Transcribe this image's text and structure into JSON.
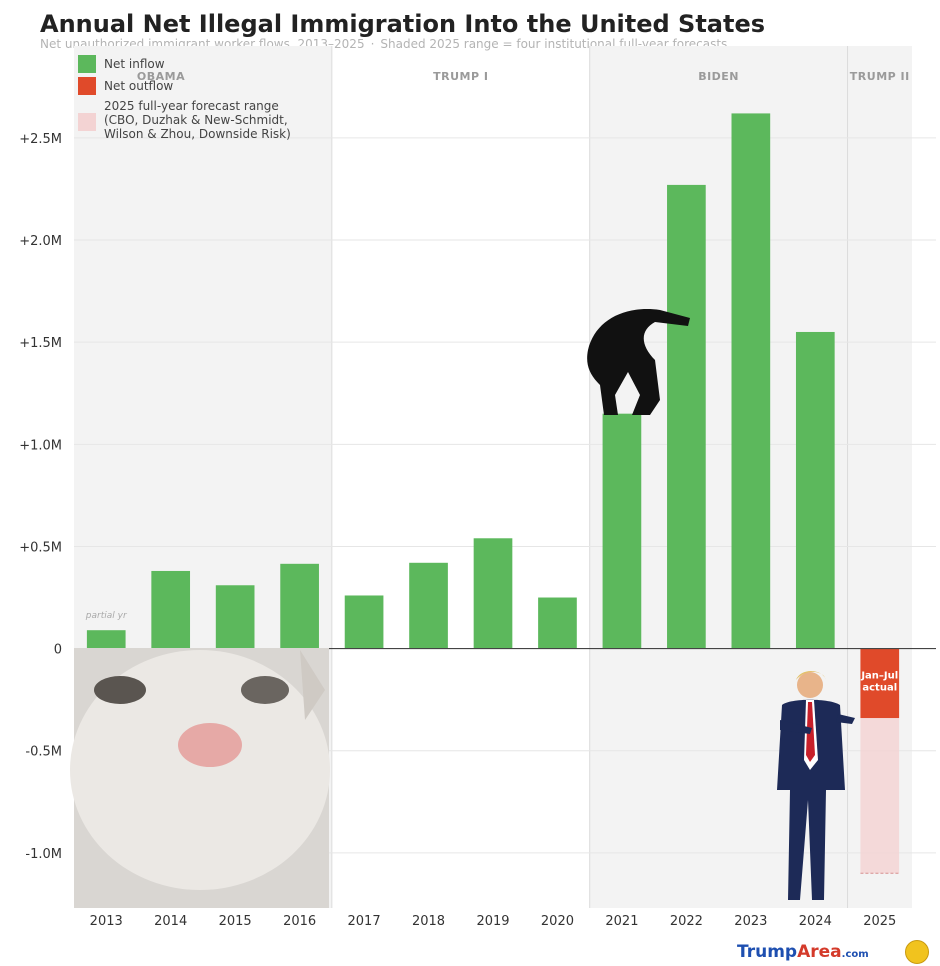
{
  "title": "Annual Net Illegal Immigration Into the United States",
  "subtitle": {
    "left": "Net unauthorized immigrant worker flows, 2013–2025",
    "separator": "·",
    "right": "Shaded 2025 range = four institutional full-year forecasts"
  },
  "chart_data": {
    "type": "bar",
    "categories": [
      "2013",
      "2014",
      "2015",
      "2016",
      "2017",
      "2018",
      "2019",
      "2020",
      "2021",
      "2022",
      "2023",
      "2024",
      "2025"
    ],
    "values": [
      90000,
      380000,
      310000,
      415000,
      260000,
      420000,
      540000,
      250000,
      1150000,
      2270000,
      2620000,
      1550000,
      -340000
    ],
    "forecast_range": {
      "category": "2025",
      "low": -1100000,
      "high": -340000
    },
    "ylim": [
      -1270000,
      2950000
    ],
    "yticks": [
      {
        "value": 2500000,
        "label": "+2.5M"
      },
      {
        "value": 2000000,
        "label": "+2.0M"
      },
      {
        "value": 1500000,
        "label": "+1.5M"
      },
      {
        "value": 1000000,
        "label": "+1.0M"
      },
      {
        "value": 500000,
        "label": "+0.5M"
      },
      {
        "value": 0,
        "label": "0"
      },
      {
        "value": -500000,
        "label": "-0.5M"
      },
      {
        "value": -1000000,
        "label": "-1.0M"
      }
    ],
    "eras": [
      {
        "label": "OBAMA",
        "from": "2013",
        "to": "2016"
      },
      {
        "label": "TRUMP I",
        "from": "2017",
        "to": "2020"
      },
      {
        "label": "BIDEN",
        "from": "2021",
        "to": "2024"
      },
      {
        "label": "TRUMP II",
        "from": "2025",
        "to": "2025"
      }
    ],
    "legend": {
      "placement": "top-left",
      "items": [
        {
          "label": "Net inflow",
          "color": "#5cb85c"
        },
        {
          "label": "Net outflow",
          "color": "#e04a2a"
        },
        {
          "label": "2025 full-year forecast range",
          "lines": [
            "2025 full-year forecast range",
            "(CBO, Duzhak & New-Schmidt,",
            "Wilson & Zhou, Downside Risk)"
          ],
          "color": "#f3d3d3"
        }
      ]
    },
    "annotations": {
      "partial": {
        "text": "partial yr",
        "category": "2013"
      },
      "actual": {
        "lines": [
          "Jan–Jul",
          "actual"
        ],
        "category": "2025"
      }
    },
    "grid": true
  },
  "colors": {
    "inflow": "#5cb85c",
    "outflow": "#e04a2a",
    "forecast": "#f3d3d3",
    "era_shade": "#f3f3f3"
  },
  "watermark": {
    "part1": "Trump",
    "part2": "Area",
    "part3": ".com"
  }
}
